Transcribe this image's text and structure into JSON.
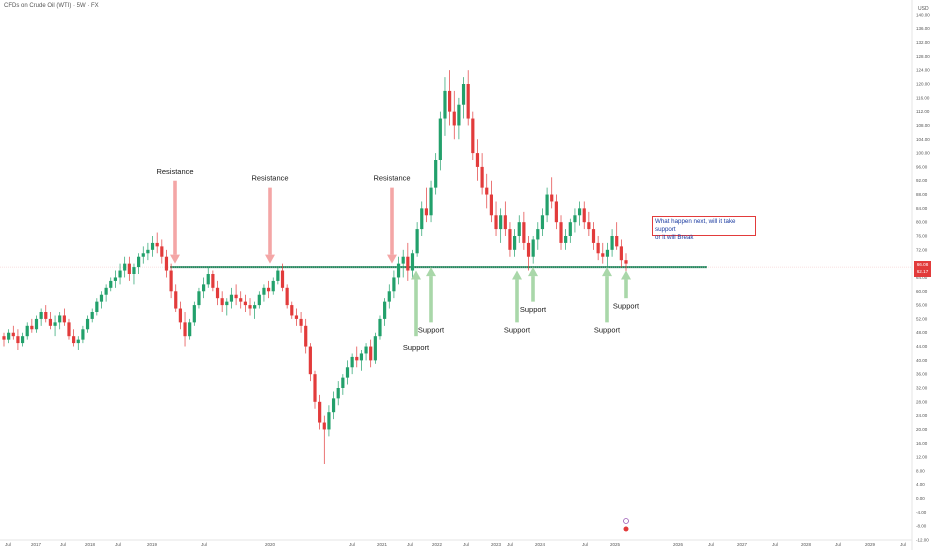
{
  "header": {
    "title": "CFDs on Crude Oil (WTI) · 5W · FX",
    "unit": "USD"
  },
  "price_badge": {
    "price": "66.08",
    "sub": "62.17"
  },
  "note": {
    "text_line1": "What happen next, will it take support",
    "text_line2": "or it will Break"
  },
  "colors": {
    "up": "#22a06b",
    "down": "#e23b3b",
    "support_line": "#1f8a60",
    "resistance_arrow": "#f4a6a6",
    "support_arrow": "#a9d7a9"
  },
  "chart_data": {
    "type": "candlestick",
    "ylim": [
      -12,
      142
    ],
    "yticks": [
      140,
      136,
      132,
      128,
      124,
      120,
      116,
      112,
      108,
      104,
      100,
      96,
      92,
      88,
      84,
      80,
      76,
      72,
      68,
      64,
      60,
      56,
      52,
      48,
      44,
      40,
      36,
      32,
      28,
      24,
      20,
      16,
      12,
      8,
      4,
      0,
      -4,
      -8,
      -12
    ],
    "xticks": [
      "Jul",
      "2017",
      "Jul",
      "2018",
      "Jul",
      "2019",
      "Jul",
      "2020",
      "Jul",
      "2021",
      "Jul",
      "2022",
      "Jul",
      "2023",
      "Jul",
      "2024",
      "Jul",
      "2025",
      "2026",
      "Jul",
      "2027",
      "Jul",
      "2028",
      "Jul",
      "2029",
      "Jul"
    ],
    "support_level": 67,
    "series": [
      {
        "values": [
          [
            47,
            48,
            44,
            46
          ],
          [
            46,
            49,
            45,
            48
          ],
          [
            48,
            50,
            46,
            47
          ],
          [
            47,
            49,
            43,
            45
          ],
          [
            45,
            48,
            44,
            47
          ],
          [
            47,
            51,
            46,
            50
          ],
          [
            50,
            52,
            48,
            49
          ],
          [
            49,
            53,
            48,
            52
          ],
          [
            52,
            55,
            50,
            54
          ],
          [
            54,
            56,
            51,
            52
          ],
          [
            52,
            54,
            49,
            50
          ],
          [
            50,
            53,
            47,
            51
          ],
          [
            51,
            54,
            49,
            53
          ],
          [
            53,
            55,
            50,
            51
          ],
          [
            51,
            52,
            46,
            47
          ],
          [
            47,
            49,
            44,
            45
          ],
          [
            45,
            47,
            43,
            46
          ],
          [
            46,
            50,
            45,
            49
          ],
          [
            49,
            53,
            48,
            52
          ],
          [
            52,
            55,
            51,
            54
          ],
          [
            54,
            58,
            53,
            57
          ],
          [
            57,
            60,
            55,
            59
          ],
          [
            59,
            62,
            57,
            61
          ],
          [
            61,
            64,
            60,
            63
          ],
          [
            63,
            66,
            61,
            64
          ],
          [
            64,
            68,
            62,
            66
          ],
          [
            66,
            70,
            64,
            68
          ],
          [
            68,
            70,
            63,
            65
          ],
          [
            65,
            68,
            62,
            67
          ],
          [
            67,
            71,
            65,
            70
          ],
          [
            70,
            73,
            68,
            71
          ],
          [
            71,
            74,
            69,
            72
          ],
          [
            72,
            76,
            70,
            74
          ],
          [
            74,
            77,
            71,
            73
          ],
          [
            73,
            75,
            68,
            70
          ],
          [
            70,
            72,
            64,
            66
          ],
          [
            66,
            68,
            58,
            60
          ],
          [
            60,
            62,
            54,
            55
          ],
          [
            55,
            57,
            49,
            51
          ],
          [
            51,
            54,
            44,
            47
          ],
          [
            47,
            52,
            46,
            51
          ],
          [
            51,
            57,
            50,
            56
          ],
          [
            56,
            61,
            55,
            60
          ],
          [
            60,
            64,
            58,
            62
          ],
          [
            62,
            67,
            61,
            65
          ],
          [
            65,
            66,
            60,
            61
          ],
          [
            61,
            63,
            56,
            58
          ],
          [
            58,
            60,
            54,
            56
          ],
          [
            56,
            58,
            53,
            57
          ],
          [
            57,
            61,
            55,
            59
          ],
          [
            59,
            62,
            56,
            58
          ],
          [
            58,
            60,
            55,
            57
          ],
          [
            57,
            59,
            54,
            56
          ],
          [
            56,
            58,
            53,
            55
          ],
          [
            55,
            57,
            52,
            56
          ],
          [
            56,
            60,
            55,
            59
          ],
          [
            59,
            62,
            57,
            61
          ],
          [
            61,
            63,
            58,
            60
          ],
          [
            60,
            64,
            59,
            63
          ],
          [
            63,
            67,
            62,
            66
          ],
          [
            66,
            68,
            60,
            61
          ],
          [
            61,
            62,
            55,
            56
          ],
          [
            56,
            57,
            52,
            53
          ],
          [
            53,
            55,
            50,
            52
          ],
          [
            52,
            54,
            48,
            50
          ],
          [
            50,
            52,
            42,
            44
          ],
          [
            44,
            45,
            34,
            36
          ],
          [
            36,
            37,
            26,
            28
          ],
          [
            28,
            30,
            20,
            22
          ],
          [
            22,
            24,
            10,
            20
          ],
          [
            20,
            27,
            18,
            25
          ],
          [
            25,
            31,
            23,
            29
          ],
          [
            29,
            34,
            27,
            32
          ],
          [
            32,
            36,
            30,
            35
          ],
          [
            35,
            40,
            33,
            38
          ],
          [
            38,
            42,
            36,
            41
          ],
          [
            41,
            44,
            38,
            40
          ],
          [
            40,
            43,
            37,
            42
          ],
          [
            42,
            45,
            40,
            44
          ],
          [
            44,
            46,
            38,
            40
          ],
          [
            40,
            48,
            39,
            47
          ],
          [
            47,
            53,
            46,
            52
          ],
          [
            52,
            58,
            50,
            57
          ],
          [
            57,
            62,
            55,
            60
          ],
          [
            60,
            66,
            58,
            64
          ],
          [
            64,
            70,
            62,
            68
          ],
          [
            68,
            72,
            64,
            70
          ],
          [
            70,
            74,
            63,
            66
          ],
          [
            66,
            72,
            64,
            71
          ],
          [
            71,
            80,
            70,
            78
          ],
          [
            78,
            86,
            76,
            84
          ],
          [
            84,
            90,
            80,
            82
          ],
          [
            82,
            92,
            80,
            90
          ],
          [
            90,
            100,
            88,
            98
          ],
          [
            98,
            112,
            95,
            110
          ],
          [
            110,
            122,
            105,
            118
          ],
          [
            118,
            124,
            108,
            112
          ],
          [
            112,
            118,
            104,
            108
          ],
          [
            108,
            116,
            104,
            114
          ],
          [
            114,
            122,
            110,
            120
          ],
          [
            120,
            124,
            108,
            110
          ],
          [
            110,
            112,
            98,
            100
          ],
          [
            100,
            104,
            92,
            96
          ],
          [
            96,
            100,
            88,
            90
          ],
          [
            90,
            94,
            84,
            88
          ],
          [
            88,
            92,
            80,
            82
          ],
          [
            82,
            86,
            76,
            78
          ],
          [
            78,
            84,
            74,
            82
          ],
          [
            82,
            86,
            76,
            78
          ],
          [
            78,
            80,
            70,
            72
          ],
          [
            72,
            78,
            70,
            76
          ],
          [
            76,
            82,
            74,
            80
          ],
          [
            80,
            83,
            72,
            74
          ],
          [
            74,
            76,
            66,
            70
          ],
          [
            70,
            76,
            68,
            75
          ],
          [
            75,
            80,
            72,
            78
          ],
          [
            78,
            84,
            76,
            82
          ],
          [
            82,
            90,
            80,
            88
          ],
          [
            88,
            93,
            84,
            86
          ],
          [
            86,
            88,
            78,
            80
          ],
          [
            80,
            82,
            72,
            74
          ],
          [
            74,
            78,
            72,
            76
          ],
          [
            76,
            81,
            74,
            80
          ],
          [
            80,
            84,
            77,
            82
          ],
          [
            82,
            86,
            79,
            84
          ],
          [
            84,
            86,
            78,
            80
          ],
          [
            80,
            83,
            76,
            78
          ],
          [
            78,
            80,
            72,
            74
          ],
          [
            74,
            76,
            69,
            71
          ],
          [
            71,
            74,
            68,
            70
          ],
          [
            70,
            74,
            67,
            72
          ],
          [
            72,
            78,
            70,
            76
          ],
          [
            76,
            80,
            72,
            73
          ],
          [
            73,
            75,
            67,
            69
          ],
          [
            69,
            71,
            65,
            68
          ]
        ]
      }
    ],
    "annotations": [
      {
        "text": "Resistance",
        "kind": "resistance"
      },
      {
        "text": "Resistance",
        "kind": "resistance"
      },
      {
        "text": "Resistance",
        "kind": "resistance"
      },
      {
        "text": "Support",
        "kind": "support"
      },
      {
        "text": "Support",
        "kind": "support"
      },
      {
        "text": "Support",
        "kind": "support"
      },
      {
        "text": "Support",
        "kind": "support"
      },
      {
        "text": "Support",
        "kind": "support"
      },
      {
        "text": "Support",
        "kind": "support"
      }
    ]
  }
}
